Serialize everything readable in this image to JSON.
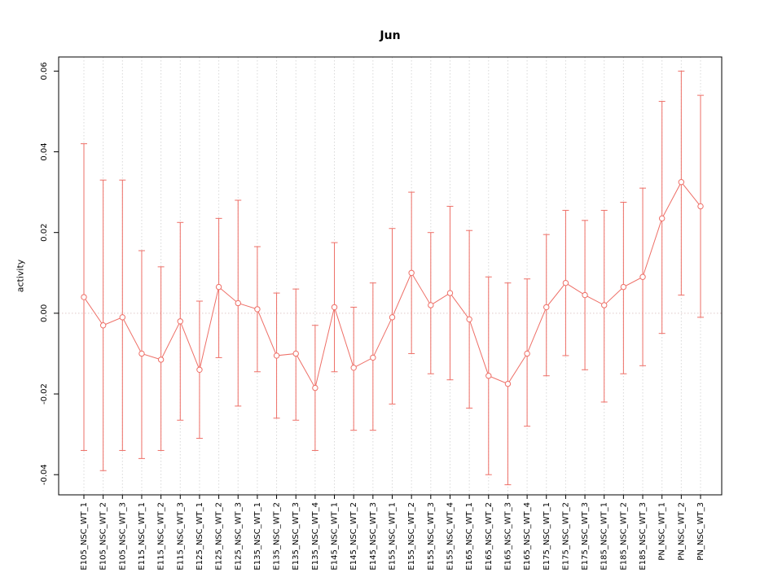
{
  "chart_data": {
    "type": "line",
    "title": "Jun",
    "xlabel": "",
    "ylabel": "activity",
    "ylim": [
      -0.045,
      0.0635
    ],
    "yticks": [
      -0.04,
      -0.02,
      0.0,
      0.02,
      0.04,
      0.06
    ],
    "grid": {
      "vertical_dotted_per_category": true,
      "horizontal_dotted_at_zero": true
    },
    "legend_position": "none",
    "marker": "open-circle",
    "colors": {
      "series": "#ee6f67",
      "grid": "#d8d8d8",
      "zero_line": "#dfc9c9",
      "axis": "#000000",
      "background": "#ffffff"
    },
    "categories": [
      "E105_NSC_WT_1",
      "E105_NSC_WT_2",
      "E105_NSC_WT_3",
      "E115_NSC_WT_1",
      "E115_NSC_WT_2",
      "E115_NSC_WT_3",
      "E125_NSC_WT_1",
      "E125_NSC_WT_2",
      "E125_NSC_WT_3",
      "E135_NSC_WT_1",
      "E135_NSC_WT_2",
      "E135_NSC_WT_3",
      "E135_NSC_WT_4",
      "E145_NSC_WT_1",
      "E145_NSC_WT_2",
      "E145_NSC_WT_3",
      "E155_NSC_WT_1",
      "E155_NSC_WT_2",
      "E155_NSC_WT_3",
      "E155_NSC_WT_4",
      "E165_NSC_WT_1",
      "E165_NSC_WT_2",
      "E165_NSC_WT_3",
      "E165_NSC_WT_4",
      "E175_NSC_WT_1",
      "E175_NSC_WT_2",
      "E175_NSC_WT_3",
      "E185_NSC_WT_1",
      "E185_NSC_WT_2",
      "E185_NSC_WT_3",
      "PN_NSC_WT_1",
      "PN_NSC_WT_2",
      "PN_NSC_WT_3"
    ],
    "series": [
      {
        "name": "Jun activity",
        "center": [
          0.004,
          -0.003,
          -0.001,
          -0.01,
          -0.0115,
          -0.002,
          -0.014,
          0.0065,
          0.0025,
          0.001,
          -0.0105,
          -0.01,
          -0.0185,
          0.0015,
          -0.0135,
          -0.011,
          -0.001,
          0.01,
          0.002,
          0.005,
          -0.0015,
          -0.0155,
          -0.0175,
          -0.01,
          0.0015,
          0.0075,
          0.0045,
          0.002,
          0.0065,
          0.009,
          0.0235,
          0.0325,
          0.0265
        ],
        "upper": [
          0.042,
          0.033,
          0.033,
          0.0155,
          0.0115,
          0.0225,
          0.003,
          0.0235,
          0.028,
          0.0165,
          0.005,
          0.006,
          -0.003,
          0.0175,
          0.0015,
          0.0075,
          0.021,
          0.03,
          0.02,
          0.0265,
          0.0205,
          0.009,
          0.0075,
          0.0085,
          0.0195,
          0.0255,
          0.023,
          0.0255,
          0.0275,
          0.031,
          0.0525,
          0.06,
          0.054
        ],
        "lower": [
          -0.034,
          -0.039,
          -0.034,
          -0.036,
          -0.034,
          -0.0265,
          -0.031,
          -0.011,
          -0.023,
          -0.0145,
          -0.026,
          -0.0265,
          -0.034,
          -0.0145,
          -0.029,
          -0.029,
          -0.0225,
          -0.01,
          -0.015,
          -0.0165,
          -0.0235,
          -0.04,
          -0.0425,
          -0.028,
          -0.0155,
          -0.0105,
          -0.014,
          -0.022,
          -0.015,
          -0.013,
          -0.005,
          0.0045,
          -0.001
        ]
      }
    ]
  }
}
